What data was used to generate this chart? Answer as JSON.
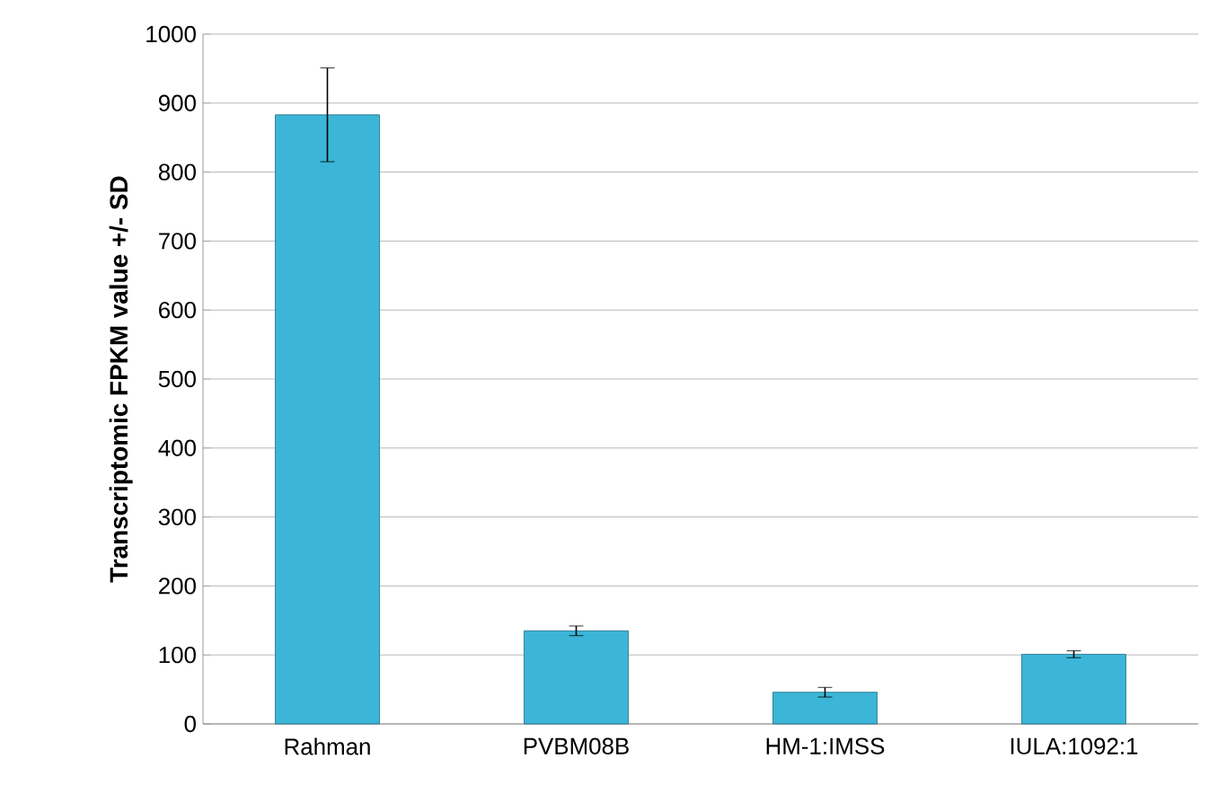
{
  "chart_data": {
    "type": "bar",
    "ylabel": "Transcriptomic FPKM value +/- SD",
    "categories": [
      "Rahman",
      "PVBM08B",
      "HM-1:IMSS",
      "IULA:1092:1"
    ],
    "values": [
      883,
      135,
      46,
      101
    ],
    "errors": [
      68,
      7,
      7,
      5
    ],
    "color": "#3bb5d8",
    "ylim": [
      0,
      1000
    ],
    "yticks": [
      0,
      100,
      200,
      300,
      400,
      500,
      600,
      700,
      800,
      900,
      1000
    ],
    "grid": "y"
  }
}
